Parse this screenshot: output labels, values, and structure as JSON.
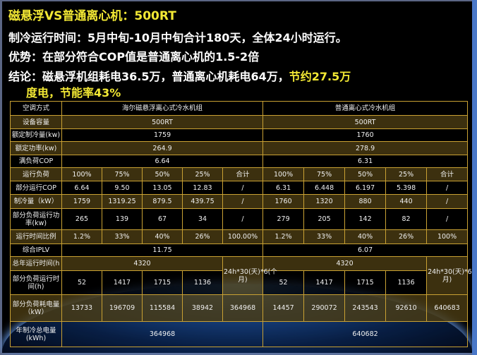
{
  "header": {
    "title": "磁悬浮VS普通离心机：500RT",
    "line2": "制冷运行时间：5月中旬-10月中旬合计180天，全体24小时运行。",
    "line3": "优势：在部分符合COP值是普通离心机的1.5-2倍",
    "line4_white": "结论：磁悬浮机组耗电36.5万，普通离心机耗电64万，",
    "line4_yellow": "节约27.5万",
    "line5": "度电，节能率43%"
  },
  "table": {
    "col_header": "空调方式",
    "unit_a": "海尔磁悬浮离心式冷水机组",
    "unit_b": "普通离心式冷水机组",
    "capacity": {
      "label": "设备容量",
      "a": "500RT",
      "b": "500RT"
    },
    "rated_cooling": {
      "label": "额定制冷量(kw)",
      "a": "1759",
      "b": "1760"
    },
    "rated_power": {
      "label": "额定功率(kw)",
      "a": "264.9",
      "b": "278.9"
    },
    "full_cop": {
      "label": "满负荷COP",
      "a": "6.64",
      "b": "6.31"
    },
    "load": {
      "label": "运行负荷",
      "a": [
        "100%",
        "75%",
        "50%",
        "25%",
        "合计"
      ],
      "b": [
        "100%",
        "75%",
        "50%",
        "25%",
        "合计"
      ]
    },
    "part_cop": {
      "label": "部分运行COP",
      "a": [
        "6.64",
        "9.50",
        "13.05",
        "12.83",
        "/"
      ],
      "b": [
        "6.31",
        "6.448",
        "6.197",
        "5.398",
        "/"
      ]
    },
    "cooling": {
      "label": "制冷量（kW）",
      "a": [
        "1759",
        "1319.25",
        "879.5",
        "439.75",
        "/"
      ],
      "b": [
        "1760",
        "1320",
        "880",
        "440",
        "/"
      ]
    },
    "part_power": {
      "label": "部分负荷运行功率(kw)",
      "a": [
        "265",
        "139",
        "67",
        "34",
        "/"
      ],
      "b": [
        "279",
        "205",
        "142",
        "82",
        "/"
      ]
    },
    "time_ratio": {
      "label": "运行时间比例",
      "a": [
        "1.2%",
        "33%",
        "40%",
        "26%",
        "100.00%"
      ],
      "b": [
        "1.2%",
        "33%",
        "40%",
        "26%",
        "100%"
      ]
    },
    "iplv": {
      "label": "综合IPLV",
      "a": "11.75",
      "b": "6.07"
    },
    "annual_hours": {
      "label": "总年运行时间(h",
      "a": "4320",
      "b": "4320",
      "note_a": "24h*30(天)*6(个月)",
      "note_b": "24h*30(天)*6(个月)"
    },
    "part_hours": {
      "label": "部分负荷运行时间(h)",
      "a": [
        "52",
        "1417",
        "1715",
        "1136"
      ],
      "b": [
        "52",
        "1417",
        "1715",
        "1136"
      ]
    },
    "part_energy": {
      "label": "部分负荷耗电量（kW）",
      "a": [
        "13733",
        "196709",
        "115584",
        "38942",
        "364968"
      ],
      "b": [
        "14457",
        "290072",
        "243543",
        "92610",
        "640683"
      ]
    },
    "annual_energy": {
      "label": "年制冷总电量(kWh)",
      "a": "364968",
      "b": "640682"
    }
  },
  "colors": {
    "accent_yellow": "#f2e834",
    "grid_gold": "#c9a133"
  }
}
